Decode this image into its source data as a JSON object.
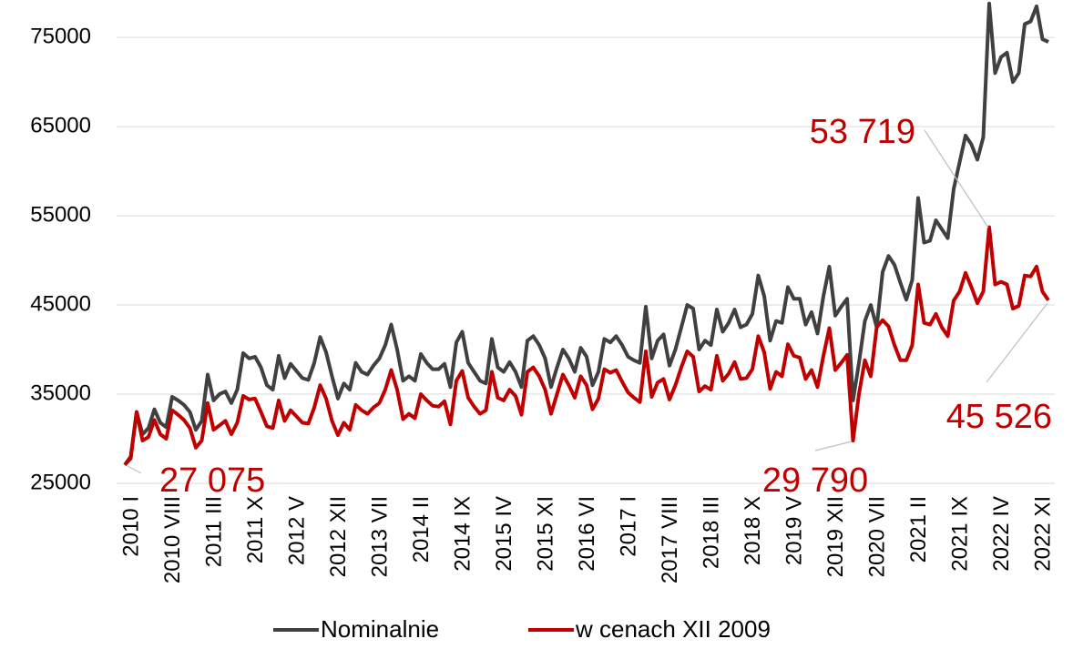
{
  "chart_data": {
    "type": "line",
    "categories": [
      "2010 I",
      null,
      null,
      null,
      null,
      null,
      null,
      "2010 VIII",
      null,
      null,
      null,
      null,
      null,
      null,
      "2011 III",
      null,
      null,
      null,
      null,
      null,
      null,
      "2011 X",
      null,
      null,
      null,
      null,
      null,
      null,
      "2012 V",
      null,
      null,
      null,
      null,
      null,
      null,
      "2012 XII",
      null,
      null,
      null,
      null,
      null,
      null,
      "2013 VII",
      null,
      null,
      null,
      null,
      null,
      null,
      "2014 II",
      null,
      null,
      null,
      null,
      null,
      null,
      "2014 IX",
      null,
      null,
      null,
      null,
      null,
      null,
      "2015 IV",
      null,
      null,
      null,
      null,
      null,
      null,
      "2015 XI",
      null,
      null,
      null,
      null,
      null,
      null,
      "2016 VI",
      null,
      null,
      null,
      null,
      null,
      null,
      "2017 I",
      null,
      null,
      null,
      null,
      null,
      null,
      "2017 VIII",
      null,
      null,
      null,
      null,
      null,
      null,
      "2018 III",
      null,
      null,
      null,
      null,
      null,
      null,
      "2018 X",
      null,
      null,
      null,
      null,
      null,
      null,
      "2019 V",
      null,
      null,
      null,
      null,
      null,
      null,
      "2019 XII",
      null,
      null,
      null,
      null,
      null,
      null,
      "2020 VII",
      null,
      null,
      null,
      null,
      null,
      null,
      "2021 II",
      null,
      null,
      null,
      null,
      null,
      null,
      "2021 IX",
      null,
      null,
      null,
      null,
      null,
      null,
      "2022 IV",
      null,
      null,
      null,
      null,
      null,
      null,
      "2022 XI",
      null,
      null
    ],
    "series": [
      {
        "name": "Nominalnie",
        "color": "#404040",
        "values": [
          27075,
          28000,
          33000,
          30500,
          31200,
          33300,
          31800,
          31300,
          34700,
          34300,
          33800,
          33000,
          31000,
          32000,
          37200,
          34300,
          35000,
          35300,
          34000,
          35500,
          39600,
          39000,
          39200,
          38000,
          36000,
          35500,
          39300,
          36800,
          38400,
          37600,
          36800,
          36600,
          38500,
          41400,
          39700,
          37000,
          34500,
          36200,
          35500,
          38500,
          37500,
          37200,
          38200,
          39000,
          40500,
          42800,
          40000,
          36500,
          37000,
          36500,
          39500,
          38500,
          37800,
          37800,
          38400,
          35800,
          40800,
          42000,
          38500,
          37500,
          36500,
          36200,
          41200,
          38000,
          37500,
          38600,
          37500,
          35800,
          41000,
          41500,
          40500,
          39000,
          35800,
          38000,
          40000,
          39000,
          37500,
          40200,
          39200,
          36000,
          37500,
          41200,
          40800,
          41500,
          40500,
          39200,
          38800,
          38500,
          44800,
          39000,
          41000,
          41700,
          38200,
          40000,
          42500,
          45000,
          44600,
          40000,
          41000,
          40500,
          44500,
          42000,
          43000,
          44500,
          42500,
          42800,
          44000,
          48300,
          46000,
          41000,
          43200,
          43000,
          47000,
          45700,
          45700,
          42800,
          44200,
          41800,
          46000,
          49300,
          43800,
          44800,
          45700,
          34300,
          38500,
          43200,
          45000,
          42500,
          48700,
          50500,
          49500,
          47500,
          45600,
          47800,
          57000,
          52000,
          52200,
          54500,
          53500,
          52500,
          58000,
          61000,
          64000,
          63000,
          61300,
          63800,
          78800,
          71000,
          72800,
          73300,
          70000,
          71000,
          76500,
          76800,
          78500,
          74800,
          74500
        ]
      },
      {
        "name": "w cenach XII 2009",
        "color": "#c00000",
        "values": [
          27075,
          27800,
          33000,
          29800,
          30200,
          32100,
          30500,
          30000,
          33200,
          32700,
          32100,
          31200,
          29000,
          29800,
          34000,
          31000,
          31500,
          32000,
          30500,
          31800,
          34800,
          34400,
          34500,
          33000,
          31400,
          31200,
          34300,
          32000,
          33200,
          32500,
          31800,
          31700,
          33500,
          36000,
          34500,
          32000,
          30400,
          31800,
          31000,
          33800,
          33200,
          32800,
          33500,
          34000,
          35500,
          37700,
          35500,
          32200,
          32800,
          32300,
          35000,
          34300,
          33700,
          33600,
          34200,
          31600,
          36500,
          37600,
          34600,
          33600,
          32800,
          33200,
          37500,
          34600,
          34300,
          35500,
          34800,
          32700,
          37500,
          38000,
          37000,
          35500,
          32800,
          35000,
          37200,
          36000,
          34600,
          37000,
          36000,
          33300,
          34500,
          37800,
          37400,
          37700,
          36400,
          35200,
          34600,
          34100,
          39800,
          34700,
          36300,
          36700,
          34400,
          36000,
          38000,
          39800,
          39200,
          35300,
          35900,
          35500,
          39300,
          36500,
          37300,
          38600,
          36700,
          36800,
          37800,
          41500,
          39700,
          35600,
          37500,
          37000,
          40600,
          39300,
          39100,
          36700,
          37700,
          35800,
          39300,
          42400,
          37700,
          38500,
          39400,
          29790,
          35000,
          38800,
          37000,
          42500,
          43300,
          42600,
          40500,
          38800,
          38800,
          40500,
          47300,
          43000,
          42800,
          44000,
          42500,
          41500,
          45500,
          46500,
          48600,
          47000,
          45200,
          46500,
          53719,
          47300,
          47600,
          47300,
          44600,
          44900,
          48300,
          48200,
          49300,
          46500,
          45526
        ]
      }
    ],
    "ylim": [
      25000,
      79200
    ],
    "yticks": [
      25000,
      35000,
      45000,
      55000,
      65000,
      75000
    ],
    "grid": true,
    "annotations": [
      "27 075",
      "29 790",
      "53 719",
      "45 526"
    ],
    "legend": "bottom"
  }
}
